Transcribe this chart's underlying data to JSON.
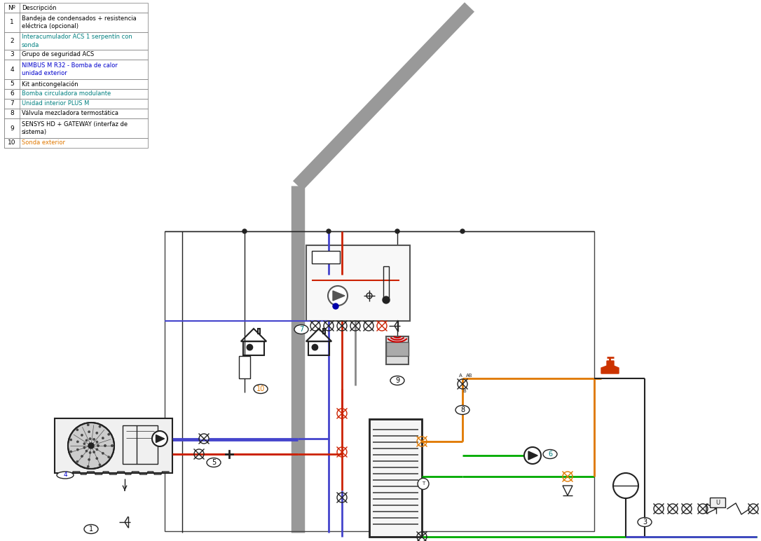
{
  "bg_color": "#ffffff",
  "table_items": [
    [
      "Nº",
      "Descripción",
      "#000000",
      "#000000"
    ],
    [
      "1",
      "Bandeja de condensados + resistencia\neléctrica (opcional)",
      "#000000",
      "#000000"
    ],
    [
      "2",
      "Interacumulador ACS 1 serpentín con\nsonda",
      "#000000",
      "#008080"
    ],
    [
      "3",
      "Grupo de seguridad ACS",
      "#000000",
      "#000000"
    ],
    [
      "4",
      "NIMBUS M R32 - Bomba de calor\nunidad exterior",
      "#000000",
      "#0000cc"
    ],
    [
      "5",
      "Kit anticongelación",
      "#000000",
      "#000000"
    ],
    [
      "6",
      "Bomba circuladora modulante",
      "#000000",
      "#008080"
    ],
    [
      "7",
      "Unidad interior PLUS M",
      "#000000",
      "#008080"
    ],
    [
      "8",
      "Válvula mezcladora termostática",
      "#000000",
      "#000000"
    ],
    [
      "9",
      "SENSYS HD + GATEWAY (interfaz de\nsistema)",
      "#000000",
      "#000000"
    ],
    [
      "10",
      "Sonda exterior",
      "#000000",
      "#e07800"
    ]
  ],
  "colors": {
    "red": "#cc2200",
    "blue": "#4444cc",
    "orange": "#e07800",
    "green": "#00aa00",
    "dark": "#222222",
    "gray": "#888888",
    "wall": "#888888"
  }
}
